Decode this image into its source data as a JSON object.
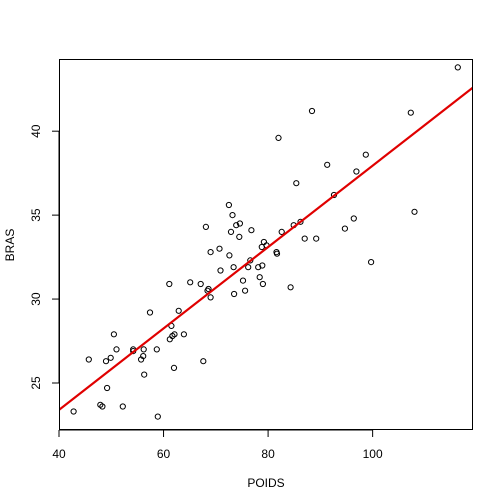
{
  "chart_data": {
    "type": "scatter",
    "title": "",
    "xlabel": "POIDS",
    "ylabel": "BRAS",
    "xlim": [
      40.0,
      119.2
    ],
    "ylim": [
      22.2,
      44.3
    ],
    "x_ticks": [
      40,
      60,
      80,
      100
    ],
    "y_ticks": [
      25,
      30,
      35,
      40
    ],
    "grid": false,
    "legend": "none",
    "point_color": "#000000",
    "line_color": "#e00000",
    "regression_line": {
      "x_start": 40.0,
      "y_start": 23.4,
      "x_end": 119.2,
      "y_end": 42.6
    },
    "points": [
      [
        42.8,
        23.3
      ],
      [
        45.7,
        26.4
      ],
      [
        47.9,
        23.7
      ],
      [
        48.3,
        23.6
      ],
      [
        49.0,
        26.3
      ],
      [
        49.2,
        24.7
      ],
      [
        49.9,
        26.5
      ],
      [
        50.5,
        27.9
      ],
      [
        51.0,
        27.0
      ],
      [
        52.2,
        23.6
      ],
      [
        54.2,
        27.0
      ],
      [
        54.2,
        26.9
      ],
      [
        55.7,
        26.4
      ],
      [
        56.1,
        26.6
      ],
      [
        56.2,
        27.0
      ],
      [
        56.3,
        25.5
      ],
      [
        57.4,
        29.2
      ],
      [
        58.7,
        27.0
      ],
      [
        58.9,
        23.0
      ],
      [
        61.1,
        30.9
      ],
      [
        61.2,
        27.6
      ],
      [
        61.5,
        28.4
      ],
      [
        61.7,
        27.8
      ],
      [
        62.0,
        25.9
      ],
      [
        62.1,
        27.9
      ],
      [
        62.9,
        29.3
      ],
      [
        63.9,
        27.9
      ],
      [
        65.1,
        31.0
      ],
      [
        67.1,
        30.9
      ],
      [
        67.6,
        26.3
      ],
      [
        68.1,
        34.3
      ],
      [
        68.4,
        30.5
      ],
      [
        68.6,
        30.6
      ],
      [
        69.0,
        32.8
      ],
      [
        69.0,
        30.1
      ],
      [
        70.7,
        33.0
      ],
      [
        70.9,
        31.7
      ],
      [
        72.5,
        35.6
      ],
      [
        72.6,
        32.6
      ],
      [
        72.9,
        34.0
      ],
      [
        73.2,
        35.0
      ],
      [
        73.4,
        31.9
      ],
      [
        73.5,
        30.3
      ],
      [
        73.9,
        34.4
      ],
      [
        74.5,
        33.7
      ],
      [
        74.6,
        34.5
      ],
      [
        75.2,
        31.1
      ],
      [
        75.6,
        30.5
      ],
      [
        76.2,
        31.9
      ],
      [
        76.6,
        32.3
      ],
      [
        76.8,
        34.1
      ],
      [
        78.1,
        31.9
      ],
      [
        78.4,
        31.3
      ],
      [
        78.8,
        33.1
      ],
      [
        78.9,
        32.0
      ],
      [
        79.0,
        30.9
      ],
      [
        79.2,
        33.4
      ],
      [
        79.7,
        33.2
      ],
      [
        81.6,
        32.8
      ],
      [
        81.7,
        32.7
      ],
      [
        82.0,
        39.6
      ],
      [
        82.6,
        34.0
      ],
      [
        84.3,
        30.7
      ],
      [
        84.9,
        34.4
      ],
      [
        85.4,
        36.9
      ],
      [
        86.2,
        34.6
      ],
      [
        87.0,
        33.6
      ],
      [
        88.4,
        41.2
      ],
      [
        89.2,
        33.6
      ],
      [
        91.3,
        38.0
      ],
      [
        92.6,
        36.2
      ],
      [
        94.7,
        34.2
      ],
      [
        96.4,
        34.8
      ],
      [
        96.9,
        37.6
      ],
      [
        98.7,
        38.6
      ],
      [
        99.7,
        32.2
      ],
      [
        107.3,
        41.1
      ],
      [
        108.0,
        35.2
      ],
      [
        116.3,
        43.8
      ]
    ]
  }
}
